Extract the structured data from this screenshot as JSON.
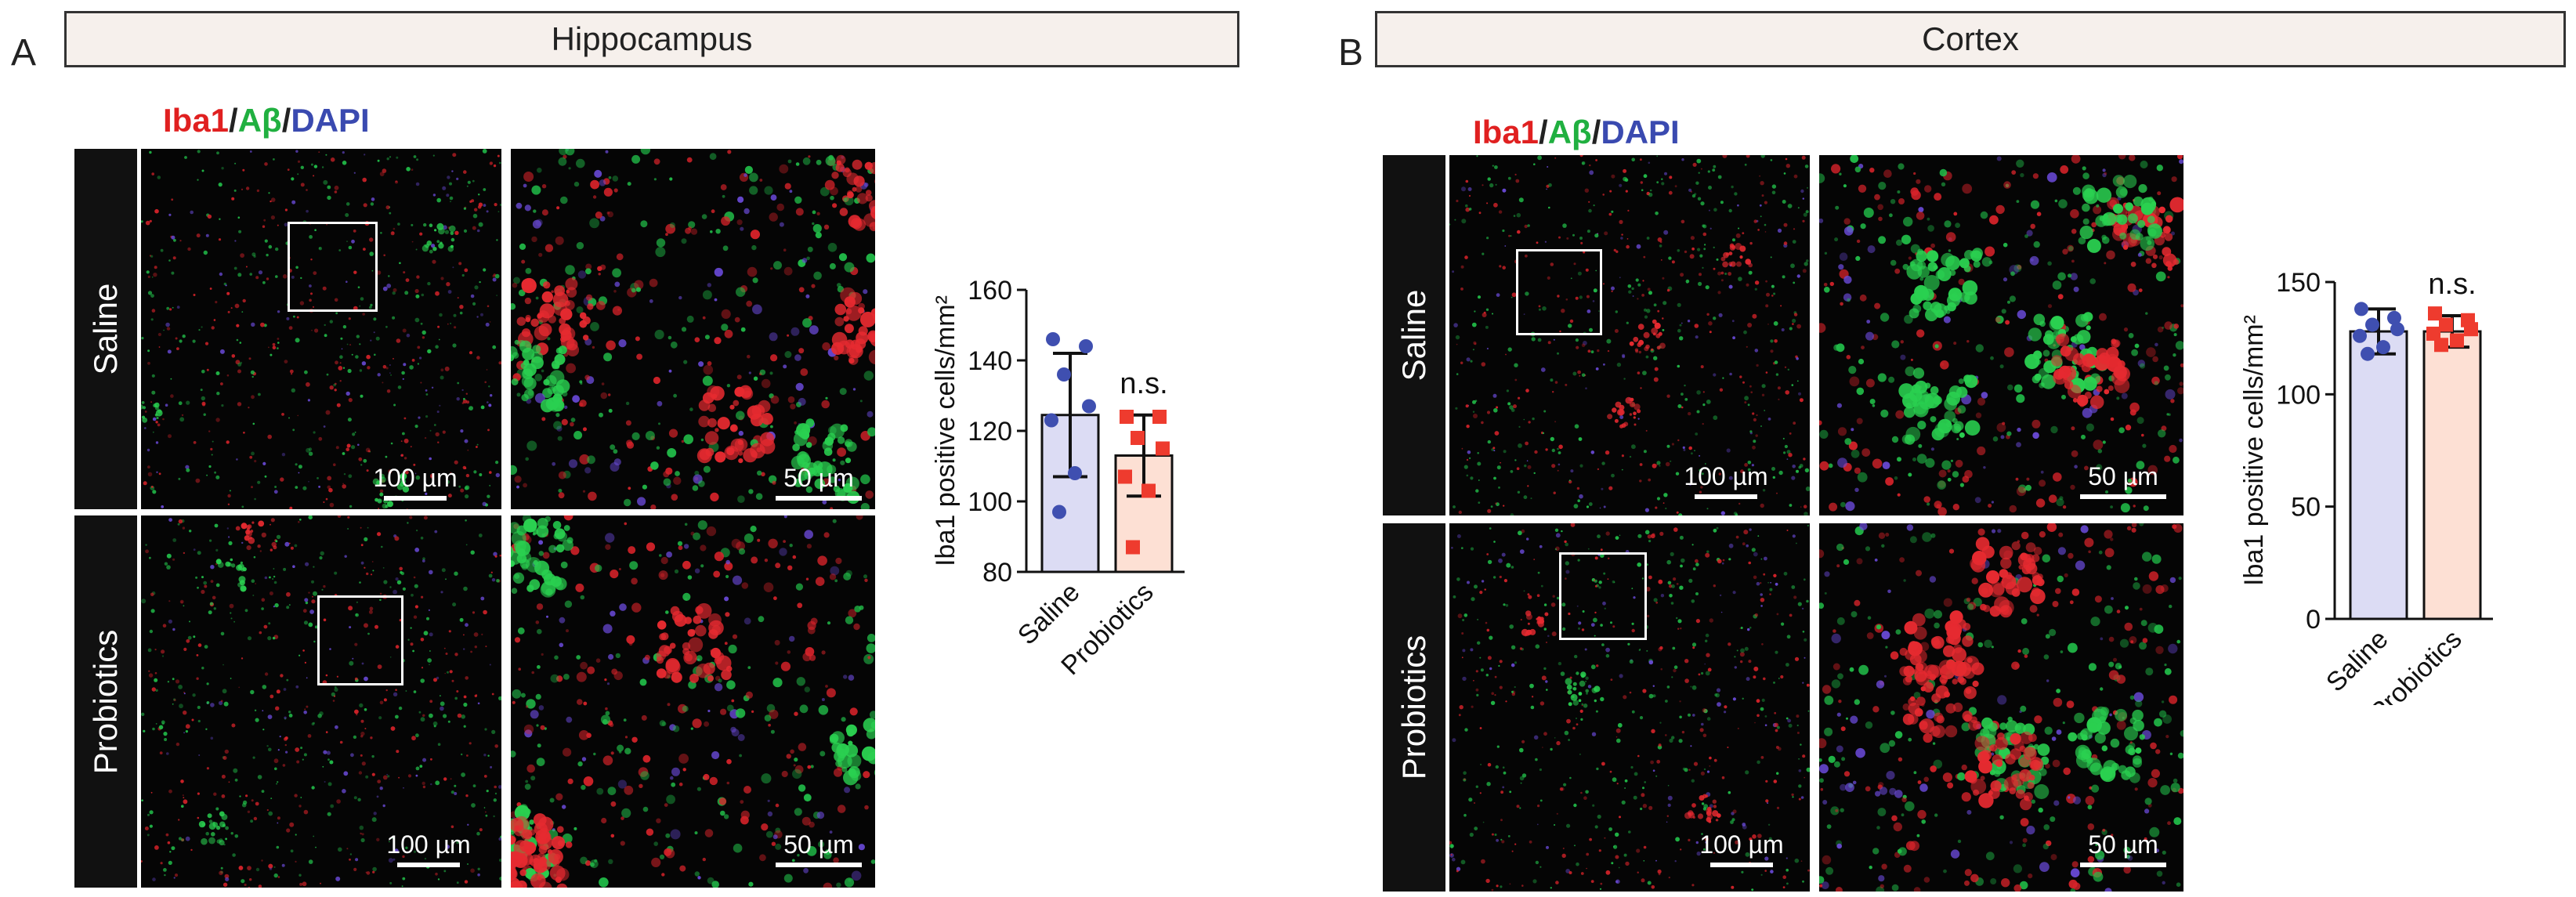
{
  "panels": [
    {
      "letter": "A",
      "region": "Hippocampus",
      "stain": {
        "iba1": "Iba1",
        "abeta": "Aβ",
        "dapi": "DAPI",
        "sep": "/"
      },
      "rows": [
        {
          "label": "Saline",
          "low_scale": "100 µm",
          "high_scale": "50 µm"
        },
        {
          "label": "Probiotics",
          "low_scale": "100 µm",
          "high_scale": "50 µm"
        }
      ]
    },
    {
      "letter": "B",
      "region": "Cortex",
      "stain": {
        "iba1": "Iba1",
        "abeta": "Aβ",
        "dapi": "DAPI",
        "sep": "/"
      },
      "rows": [
        {
          "label": "Saline",
          "low_scale": "100 µm",
          "high_scale": "50 µm"
        },
        {
          "label": "Probiotics",
          "low_scale": "100 µm",
          "high_scale": "50 µm"
        }
      ]
    }
  ],
  "chart_data": [
    {
      "type": "bar",
      "categories": [
        "Saline",
        "Probiotics"
      ],
      "values": [
        124.5,
        113
      ],
      "error": [
        17.5,
        11.5
      ],
      "points": [
        [
          146,
          144,
          136,
          127,
          123,
          108,
          97
        ],
        [
          124,
          124,
          118,
          115,
          107,
          103,
          87
        ]
      ],
      "ylabel": "Iba1 positive cells/mm²",
      "ylim": [
        80,
        160
      ],
      "yticks": [
        "80",
        "100",
        "120",
        "140",
        "160"
      ],
      "annotation": "n.s.",
      "colors": {
        "bar1": "#dcdcf4",
        "bar2": "#fde0d4",
        "pt1": "#3f4fb0",
        "pt2": "#ee3b2e"
      }
    },
    {
      "type": "bar",
      "categories": [
        "Saline",
        "Probiotics"
      ],
      "values": [
        128,
        128
      ],
      "error": [
        10,
        7
      ],
      "points": [
        [
          138,
          134,
          131,
          129,
          126,
          121,
          118
        ],
        [
          136,
          133,
          131,
          129,
          127,
          124,
          122
        ]
      ],
      "ylabel": "Iba1 positive cells/mm²",
      "ylim": [
        0,
        150
      ],
      "yticks": [
        "0",
        "50",
        "100",
        "150"
      ],
      "annotation": "n.s.",
      "colors": {
        "bar1": "#dcdcf4",
        "bar2": "#fde0d4",
        "pt1": "#3f4fb0",
        "pt2": "#ee3b2e"
      }
    }
  ]
}
